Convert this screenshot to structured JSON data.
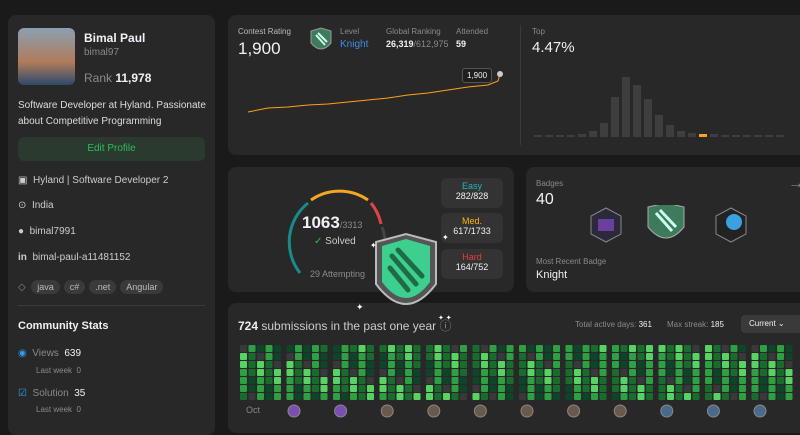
{
  "profile": {
    "name": "Bimal Paul",
    "username": "bimal97",
    "rank_label": "Rank",
    "rank": "11,978",
    "bio": "Software Developer at Hyland. Passionate about Competitive Programming",
    "edit_button": "Edit Profile",
    "company": "Hyland | Software Developer 2",
    "location": "India",
    "github": "bimal7991",
    "linkedin": "bimal-paul-a11481152",
    "skills": [
      "java",
      "c#",
      ".net",
      "Angular"
    ]
  },
  "community_stats": {
    "title": "Community Stats",
    "items": [
      {
        "label": "Views",
        "value": "639",
        "sub_label": "Last week",
        "sub_value": "0"
      },
      {
        "label": "Solution",
        "value": "35",
        "sub_label": "Last week",
        "sub_value": "0"
      }
    ]
  },
  "contest": {
    "rating_label": "Contest Rating",
    "rating": "1,900",
    "level_label": "Level",
    "level": "Knight",
    "ranking_label": "Global Ranking",
    "ranking": "26,319",
    "ranking_total": "/612,975",
    "attended_label": "Attended",
    "attended": "59",
    "top_label": "Top",
    "top": "4.47%",
    "tooltip": "1,900"
  },
  "problems": {
    "solved": "1063",
    "total": "/3313",
    "solved_label": "Solved",
    "attempting": "29 Attempting",
    "levels": [
      {
        "label": "Easy",
        "count": "282/828"
      },
      {
        "label": "Med.",
        "count": "617/1733"
      },
      {
        "label": "Hard",
        "count": "164/752"
      }
    ]
  },
  "badges": {
    "title": "Badges",
    "count": "40",
    "recent_label": "Most Recent Badge",
    "recent": "Knight"
  },
  "submissions": {
    "count": "724",
    "text": "submissions in the past one year",
    "active_label": "Total active days:",
    "active": "361",
    "streak_label": "Max streak:",
    "streak": "185",
    "selector": "Current",
    "month": "Oct"
  }
}
